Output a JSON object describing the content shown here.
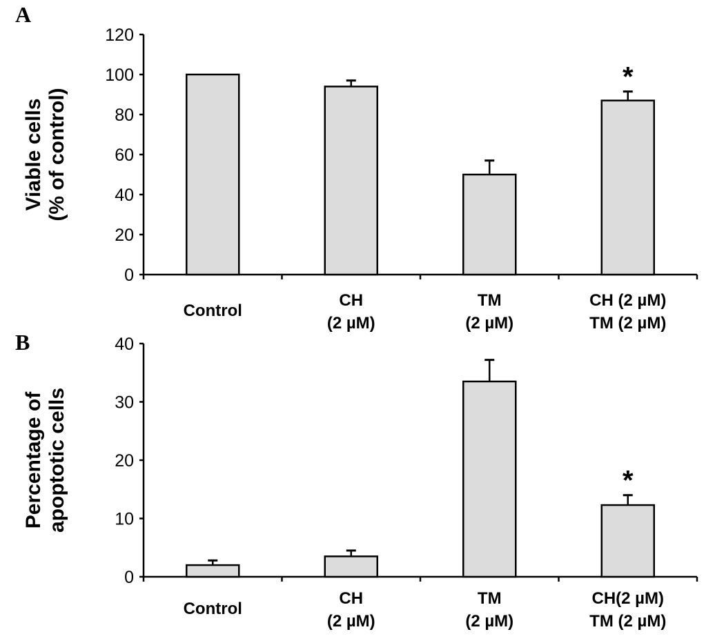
{
  "chart_data": [
    {
      "type": "bar",
      "panel": "A",
      "ylabel": [
        "Viable cells",
        "(% of control)"
      ],
      "ylim": [
        0,
        120
      ],
      "yticks": [
        0,
        20,
        40,
        60,
        80,
        100,
        120
      ],
      "categories": [
        [
          "Control"
        ],
        [
          "CH",
          "(2 µM)"
        ],
        [
          "TM",
          "(2 µM)"
        ],
        [
          "CH (2 µM)",
          "TM (2 µM)"
        ]
      ],
      "values": [
        100,
        94,
        50,
        87
      ],
      "errors": [
        0,
        3,
        7,
        4.5
      ],
      "annotations": [
        "",
        "",
        "",
        "*"
      ],
      "bar_color": "#dcdcdc"
    },
    {
      "type": "bar",
      "panel": "B",
      "ylabel": [
        "Percentage of",
        "apoptotic cells"
      ],
      "ylim": [
        0,
        40
      ],
      "yticks": [
        0,
        10,
        20,
        30,
        40
      ],
      "categories": [
        [
          "Control"
        ],
        [
          "CH",
          "(2 µM)"
        ],
        [
          "TM",
          "(2 µM)"
        ],
        [
          "CH(2 µM)",
          "TM (2 µM)"
        ]
      ],
      "values": [
        2,
        3.5,
        33.5,
        12.3
      ],
      "errors": [
        0.8,
        1,
        3.7,
        1.7
      ],
      "annotations": [
        "",
        "",
        "",
        "*"
      ],
      "bar_color": "#dcdcdc"
    }
  ]
}
